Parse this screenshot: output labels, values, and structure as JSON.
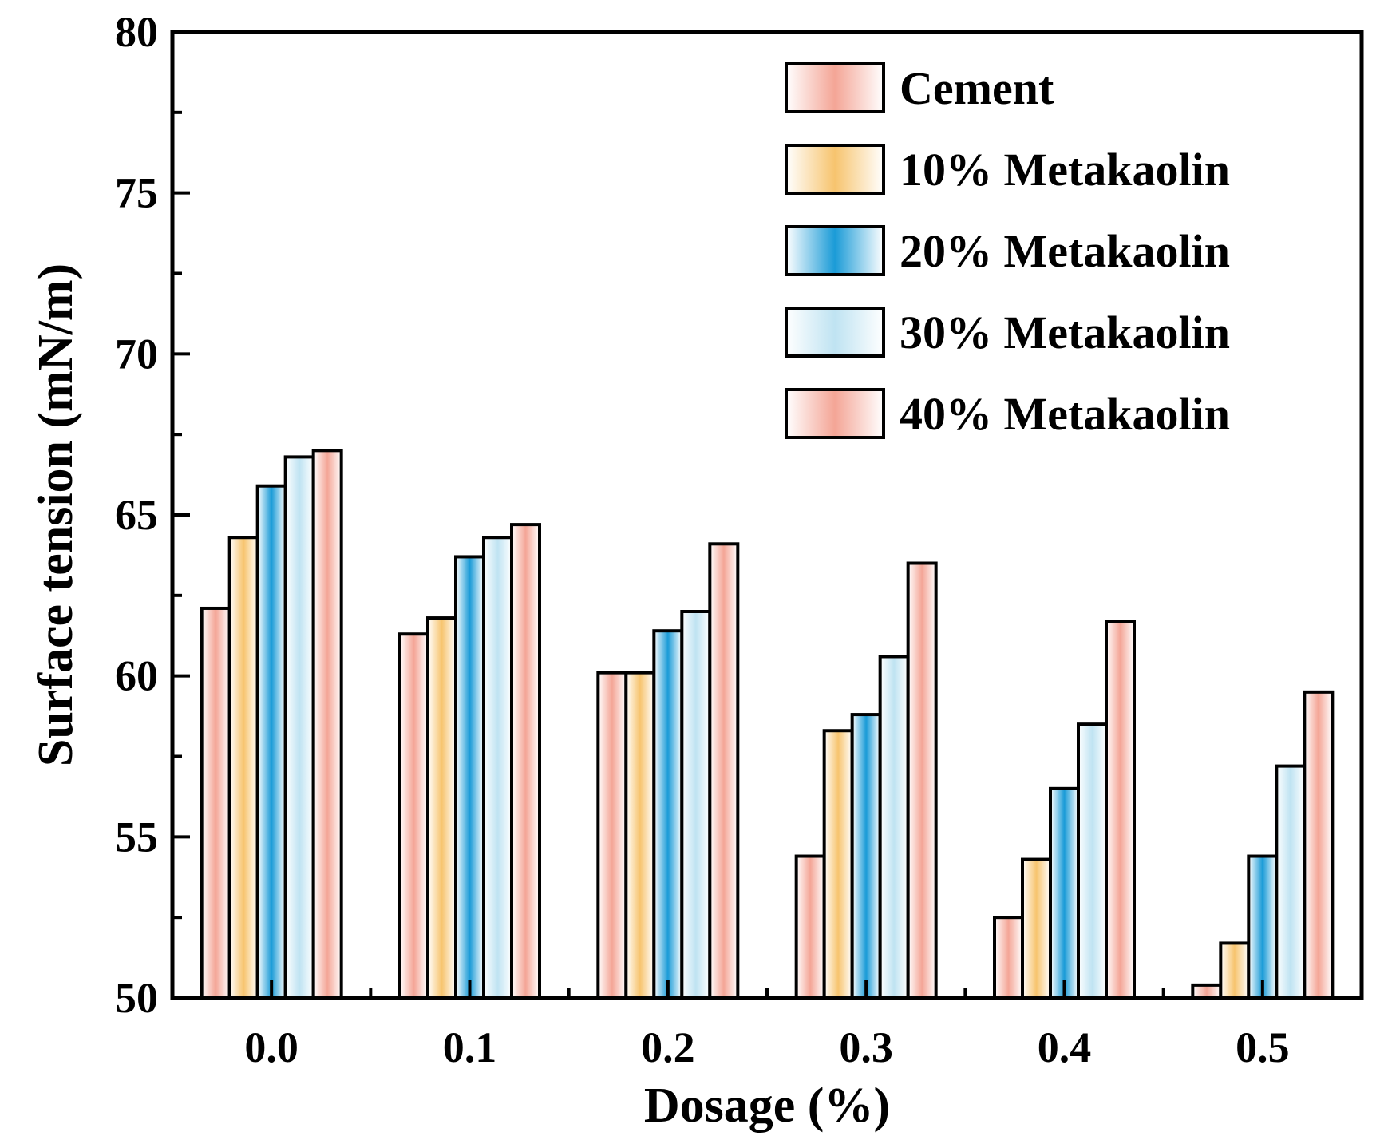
{
  "chart_data": {
    "type": "bar",
    "title": "",
    "xlabel": "Dosage (%)",
    "ylabel": "Surface tension (mN/m)",
    "ylim": [
      50,
      80
    ],
    "yticks": [
      "50",
      "55",
      "60",
      "65",
      "70",
      "75",
      "80"
    ],
    "categories": [
      "0.0",
      "0.1",
      "0.2",
      "0.3",
      "0.4",
      "0.5"
    ],
    "legend_position": "top-right",
    "series": [
      {
        "name": "Cement",
        "color": "#F4A596",
        "values": [
          62.1,
          61.3,
          60.1,
          54.4,
          52.5,
          50.4
        ]
      },
      {
        "name": "10% Metakaolin",
        "color": "#F7C46E",
        "values": [
          64.3,
          61.8,
          60.1,
          58.3,
          54.3,
          51.7
        ]
      },
      {
        "name": "20% Metakaolin",
        "color": "#1A9BD7",
        "values": [
          65.9,
          63.7,
          61.4,
          58.8,
          56.5,
          54.4
        ]
      },
      {
        "name": "30% Metakaolin",
        "color": "#BFE3F2",
        "values": [
          66.8,
          64.3,
          62.0,
          60.6,
          58.5,
          57.2
        ]
      },
      {
        "name": "40% Metakaolin",
        "color": "#F4A596",
        "values": [
          67.0,
          64.7,
          64.1,
          63.5,
          61.7,
          59.5
        ]
      }
    ]
  }
}
